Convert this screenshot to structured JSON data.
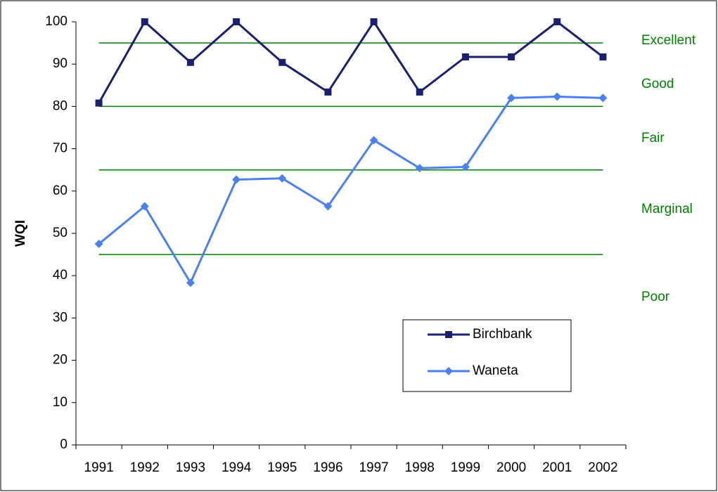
{
  "chart_data": {
    "type": "line",
    "y_label": "WQI",
    "categories": [
      "1991",
      "1992",
      "1993",
      "1994",
      "1995",
      "1996",
      "1997",
      "1998",
      "1999",
      "2000",
      "2001",
      "2002"
    ],
    "series": [
      {
        "name": "Birchbank",
        "color": "#1a1f70",
        "marker": "square",
        "values": [
          80.8,
          100,
          90.4,
          100,
          90.4,
          83.4,
          100,
          83.4,
          91.7,
          91.7,
          100,
          91.7
        ]
      },
      {
        "name": "Waneta",
        "color": "#4a80f0",
        "marker": "diamond",
        "values": [
          47.5,
          56.4,
          38.3,
          62.7,
          63,
          56.4,
          72,
          65.4,
          65.7,
          82,
          82.3,
          82
        ]
      }
    ],
    "thresholds": {
      "color": "#008000",
      "values": [
        95,
        80,
        65,
        45
      ]
    },
    "zones": [
      "Excellent",
      "Good",
      "Fair",
      "Marginal",
      "Poor"
    ],
    "ylim": [
      0,
      100
    ],
    "yticks": [
      0,
      10,
      20,
      30,
      40,
      50,
      60,
      70,
      80,
      90,
      100
    ],
    "grid": false
  }
}
